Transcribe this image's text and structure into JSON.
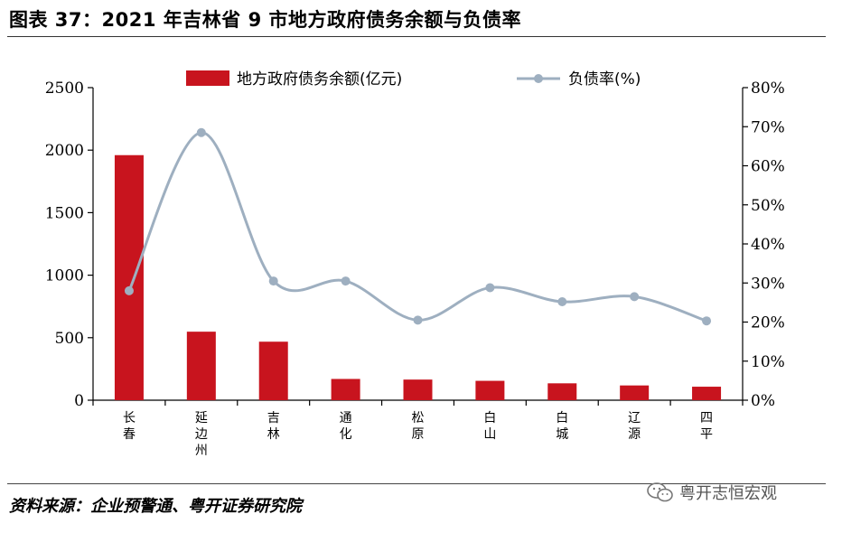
{
  "title": "图表 37：2021 年吉林省 9 市地方政府债务余额与负债率",
  "source": "资料来源：企业预警通、粤开证券研究院",
  "watermark": "粤开志恒宏观",
  "colors": {
    "bar": "#C8141E",
    "line": "#9EAFC0",
    "axis": "#000000"
  },
  "chart_data": {
    "type": "bar+line",
    "categories": [
      [
        "长",
        "春"
      ],
      [
        "延",
        "边",
        "州"
      ],
      [
        "吉",
        "林"
      ],
      [
        "通",
        "化"
      ],
      [
        "松",
        "原"
      ],
      [
        "白",
        "山"
      ],
      [
        "白",
        "城"
      ],
      [
        "辽",
        "源"
      ],
      [
        "四",
        "平"
      ]
    ],
    "series": [
      {
        "name": "地方政府债务余额(亿元)",
        "type": "bar",
        "axis": "left",
        "values": [
          1960,
          548,
          468,
          170,
          165,
          155,
          135,
          118,
          108
        ]
      },
      {
        "name": "负债率(%)",
        "type": "line",
        "axis": "right",
        "values": [
          28.0,
          68.5,
          30.5,
          30.5,
          20.5,
          28.8,
          25.2,
          26.5,
          20.3
        ]
      }
    ],
    "left_axis": {
      "ylim": [
        0,
        2500
      ],
      "ticks": [
        "0",
        "500",
        "1000",
        "1500",
        "2000",
        "2500"
      ]
    },
    "right_axis": {
      "ylim": [
        0,
        80
      ],
      "ticks": [
        "0%",
        "10%",
        "20%",
        "30%",
        "40%",
        "50%",
        "60%",
        "70%",
        "80%"
      ]
    },
    "legend": {
      "position": "top"
    },
    "grid": false
  }
}
